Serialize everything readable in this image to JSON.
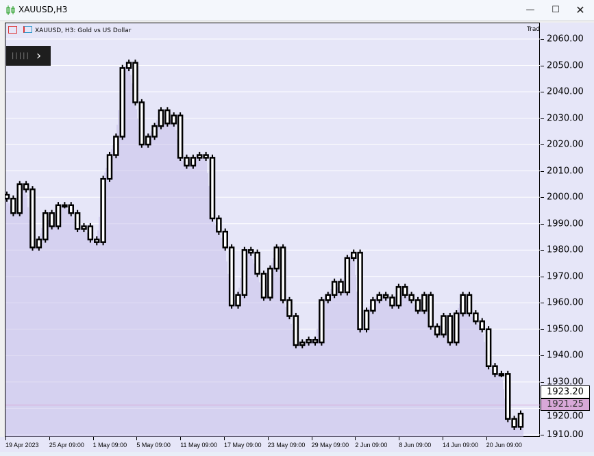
{
  "window": {
    "title": "XAUUSD,H3",
    "controls": [
      "minimize",
      "maximize",
      "close"
    ]
  },
  "chart_header": {
    "text": "XAUUSD, H3:  Gold vs US Dollar",
    "right_text": "Trad"
  },
  "colors": {
    "background": "#e6e6f8",
    "candle_stroke": "#000000",
    "candle_body": "#ffffff",
    "volume_fill": "#c4bce8",
    "price_line": "#d8a8d8"
  },
  "current_price": "1923.20",
  "bid_label": "1921.25",
  "chart_data": {
    "type": "candlestick",
    "title": "XAUUSD, H3:  Gold vs US Dollar",
    "ylim": [
      1908,
      2064
    ],
    "y_ticks": [
      "2060.00",
      "2050.00",
      "2040.00",
      "2030.00",
      "2020.00",
      "2010.00",
      "2000.00",
      "1990.00",
      "1980.00",
      "1970.00",
      "1960.00",
      "1950.00",
      "1940.00",
      "1930.00",
      "1920.00",
      "1910.00"
    ],
    "x_labels": [
      "19 Apr 2023",
      "25 Apr 09:00",
      "1 May 09:00",
      "5 May 09:00",
      "11 May 09:00",
      "17 May 09:00",
      "23 May 09:00",
      "29 May 09:00",
      "2 Jun 09:00",
      "8 Jun 09:00",
      "14 Jun 09:00",
      "20 Jun 09:00"
    ],
    "closes": [
      1999.5,
      1994,
      2005,
      2003,
      1981,
      1984,
      1994,
      1989,
      1997,
      1997,
      1994,
      1988,
      1989,
      1984,
      1983,
      2007,
      2016,
      2023,
      2049,
      2051,
      2036,
      2020,
      2023,
      2027,
      2033,
      2028,
      2031,
      2015,
      2012,
      2015,
      2016,
      2015,
      1992,
      1987,
      1981,
      1959,
      1963,
      1980,
      1979,
      1971,
      1962,
      1973,
      1981,
      1961,
      1955,
      1944,
      1945,
      1946,
      1945,
      1961,
      1963,
      1968,
      1964,
      1977,
      1979,
      1950,
      1957,
      1961,
      1963,
      1962,
      1959,
      1966,
      1963,
      1961,
      1957,
      1963,
      1951,
      1948,
      1955,
      1945,
      1956,
      1963,
      1956,
      1953,
      1950,
      1936,
      1933,
      1933,
      1916,
      1913,
      1918
    ]
  }
}
